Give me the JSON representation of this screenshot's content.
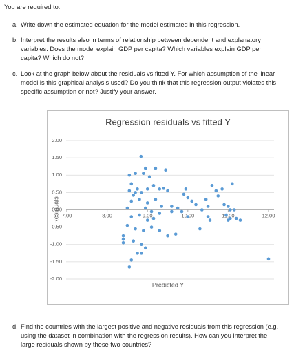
{
  "header": {
    "title": "You are required to:"
  },
  "items": [
    {
      "marker": "a.",
      "text": "Write down the estimated equation for the model estimated in this regression."
    },
    {
      "marker": "b.",
      "text": "Interpret the results also in terms of relationship between dependent and explanatory variables. Does the model explain GDP per capita? Which variables explain GDP per capita? Which do not?"
    },
    {
      "marker": "c.",
      "text": "Look at the graph below about the residuals vs fitted Y. For which assumption of the linear model is this graphical analysis used? Do you think that this regression output violates this specific assumption or not? Justify your answer."
    },
    {
      "marker": "d.",
      "text": "Find the countries with the largest positive and negative residuals from this regression (e.g. using the dataset in combination with the regression results). How can you interpret the large residuals shown by these two countries?"
    }
  ],
  "chart_data": {
    "type": "scatter",
    "title": "Regression residuals vs fitted Y",
    "x_label": "Predicted Y",
    "y_label": "Residuals",
    "color": "#5b9bd5",
    "grid": true,
    "xlim": [
      7,
      12
    ],
    "ylim": [
      -2,
      2
    ],
    "xticks": [
      {
        "value": 7,
        "label": "7.00"
      },
      {
        "value": 8,
        "label": "8.00"
      },
      {
        "value": 9,
        "label": "9.00"
      },
      {
        "value": 10,
        "label": "10.00"
      },
      {
        "value": 11,
        "label": "11.00"
      },
      {
        "value": 12,
        "label": "12.00"
      }
    ],
    "yticks": [
      {
        "value": -2,
        "label": "-2.00"
      },
      {
        "value": -1.5,
        "label": "-1.50"
      },
      {
        "value": -1,
        "label": "-1.00"
      },
      {
        "value": -0.5,
        "label": "-0.50"
      },
      {
        "value": 0,
        "label": "0.00"
      },
      {
        "value": 0.5,
        "label": "0.50"
      },
      {
        "value": 1,
        "label": "1.00"
      },
      {
        "value": 1.5,
        "label": "1.50"
      },
      {
        "value": 2,
        "label": "2.00"
      }
    ],
    "x": [
      8.84,
      8.95,
      8.55,
      8.7,
      8.9,
      9.2,
      9.45,
      9.05,
      8.6,
      8.75,
      8.55,
      8.7,
      8.65,
      8.85,
      9.0,
      9.15,
      9.3,
      9.4,
      9.5,
      8.6,
      8.8,
      9.0,
      9.2,
      9.35,
      8.95,
      8.5,
      9.1,
      9.3,
      8.6,
      8.8,
      9.0,
      9.15,
      8.5,
      8.7,
      8.9,
      9.1,
      9.3,
      9.5,
      9.7,
      8.4,
      8.4,
      8.4,
      8.65,
      8.85,
      8.95,
      8.75,
      8.85,
      8.6,
      8.55,
      9.6,
      9.75,
      9.9,
      9.95,
      10.0,
      10.1,
      10.2,
      10.35,
      10.45,
      10.5,
      10.6,
      10.7,
      10.75,
      10.85,
      10.9,
      11.0,
      11.05,
      10.95,
      11.15,
      10.55,
      10.3,
      10.0,
      9.85,
      11.05,
      11.2,
      11.3,
      11.0,
      12.0,
      11.1,
      9.6,
      10.5
    ],
    "values": [
      1.54,
      1.2,
      1.0,
      1.05,
      1.05,
      1.2,
      1.15,
      0.95,
      0.75,
      0.6,
      0.55,
      0.5,
      0.42,
      0.5,
      0.6,
      0.7,
      0.6,
      0.62,
      0.55,
      0.25,
      0.3,
      0.2,
      0.3,
      0.1,
      0.05,
      0.05,
      -0.05,
      -0.1,
      -0.2,
      -0.15,
      -0.3,
      -0.25,
      -0.45,
      -0.55,
      -0.6,
      -0.5,
      -0.6,
      -0.75,
      -0.7,
      -0.75,
      -0.85,
      -0.95,
      -0.9,
      -1.0,
      -1.1,
      -1.25,
      -1.25,
      -1.45,
      -1.65,
      0.1,
      0.05,
      0.45,
      0.6,
      0.35,
      0.25,
      0.15,
      0.0,
      0.3,
      0.1,
      0.7,
      0.55,
      0.4,
      0.6,
      0.15,
      0.1,
      0.0,
      -0.15,
      0.0,
      -0.3,
      -0.55,
      -0.2,
      -0.05,
      -0.25,
      -0.25,
      -0.3,
      -0.3,
      -1.42,
      0.75,
      -0.05,
      -0.2
    ]
  }
}
